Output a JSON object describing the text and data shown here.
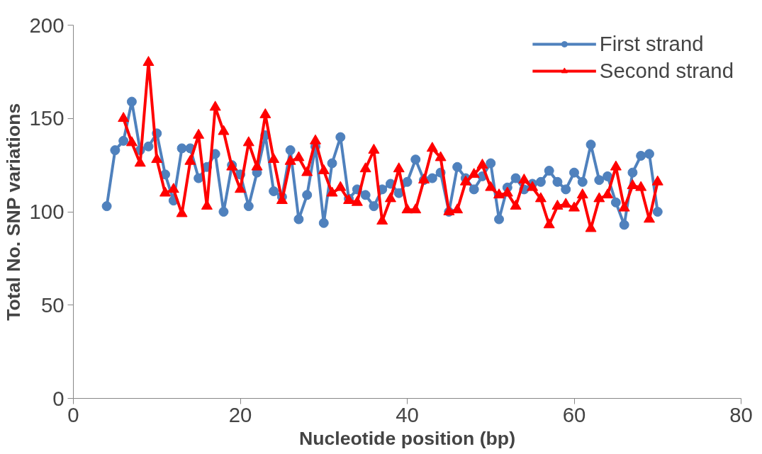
{
  "chart_data": {
    "type": "line",
    "xlabel": "Nucleotide position (bp)",
    "ylabel": "Total No. SNP variations",
    "xlim": [
      0,
      80
    ],
    "xticks": [
      0,
      20,
      40,
      60,
      80
    ],
    "ylim": [
      0,
      200
    ],
    "yticks": [
      0,
      50,
      100,
      150,
      200
    ],
    "grid": false,
    "legend": "top right",
    "line_style": "solid",
    "series": [
      {
        "name": "First strand",
        "color": "#4f81bd",
        "marker": "circle",
        "x": [
          4,
          5,
          6,
          7,
          8,
          9,
          10,
          11,
          12,
          13,
          14,
          15,
          16,
          17,
          18,
          19,
          20,
          21,
          22,
          23,
          24,
          25,
          26,
          27,
          28,
          29,
          30,
          31,
          32,
          33,
          34,
          35,
          36,
          37,
          38,
          39,
          40,
          41,
          42,
          43,
          44,
          45,
          46,
          47,
          48,
          49,
          50,
          51,
          52,
          53,
          54,
          55,
          56,
          57,
          58,
          59,
          60,
          61,
          62,
          63,
          64,
          65,
          66,
          67,
          68,
          69,
          70
        ],
        "values": [
          103,
          133,
          138,
          159,
          133,
          135,
          142,
          120,
          106,
          134,
          134,
          118,
          124,
          131,
          100,
          125,
          120,
          103,
          121,
          141,
          111,
          108,
          133,
          96,
          109,
          135,
          94,
          126,
          140,
          107,
          112,
          109,
          103,
          112,
          115,
          110,
          116,
          128,
          117,
          118,
          121,
          100,
          124,
          118,
          112,
          119,
          126,
          96,
          113,
          118,
          112,
          115,
          116,
          122,
          116,
          112,
          121,
          116,
          136,
          117,
          119,
          105,
          93,
          121,
          130,
          131,
          100
        ]
      },
      {
        "name": "Second strand",
        "color": "#ff0000",
        "marker": "triangle",
        "x": [
          6,
          7,
          8,
          9,
          10,
          11,
          12,
          13,
          14,
          15,
          16,
          17,
          18,
          19,
          20,
          21,
          22,
          23,
          24,
          25,
          26,
          27,
          28,
          29,
          30,
          31,
          32,
          33,
          34,
          35,
          36,
          37,
          38,
          39,
          40,
          41,
          42,
          43,
          44,
          45,
          46,
          47,
          48,
          49,
          50,
          51,
          52,
          53,
          54,
          55,
          56,
          57,
          58,
          59,
          60,
          61,
          62,
          63,
          64,
          65,
          66,
          67,
          68,
          69,
          70
        ],
        "values": [
          150,
          137,
          126,
          180,
          128,
          110,
          112,
          99,
          127,
          141,
          103,
          156,
          143,
          124,
          112,
          137,
          124,
          152,
          128,
          106,
          127,
          129,
          121,
          138,
          122,
          110,
          113,
          106,
          105,
          123,
          133,
          95,
          107,
          123,
          101,
          101,
          117,
          134,
          129,
          100,
          101,
          116,
          120,
          125,
          113,
          109,
          110,
          103,
          117,
          113,
          107,
          93,
          103,
          104,
          102,
          109,
          91,
          107,
          109,
          124,
          102,
          114,
          113,
          96,
          116
        ]
      }
    ]
  }
}
